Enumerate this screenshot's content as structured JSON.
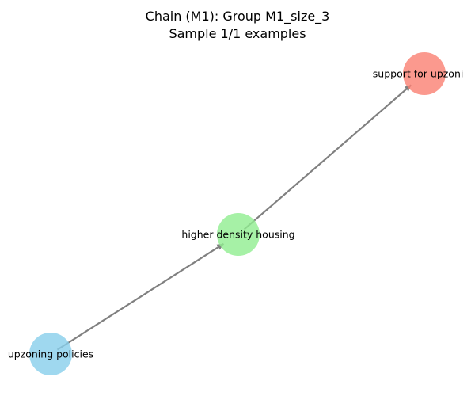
{
  "figure": {
    "title_line1": "Chain (M1): Group M1_size_3",
    "title_line2": "Sample 1/1 examples"
  },
  "graph": {
    "nodes": [
      {
        "id": "n1",
        "label": "upzoning policies",
        "color": "#87ceeb"
      },
      {
        "id": "n2",
        "label": "higher density housing",
        "color": "#90ee90"
      },
      {
        "id": "n3",
        "label": "support for upzoning",
        "color": "#fa8072"
      }
    ],
    "edges": [
      {
        "from": "n1",
        "to": "n2"
      },
      {
        "from": "n2",
        "to": "n3"
      }
    ],
    "edge_color": "#808080"
  }
}
